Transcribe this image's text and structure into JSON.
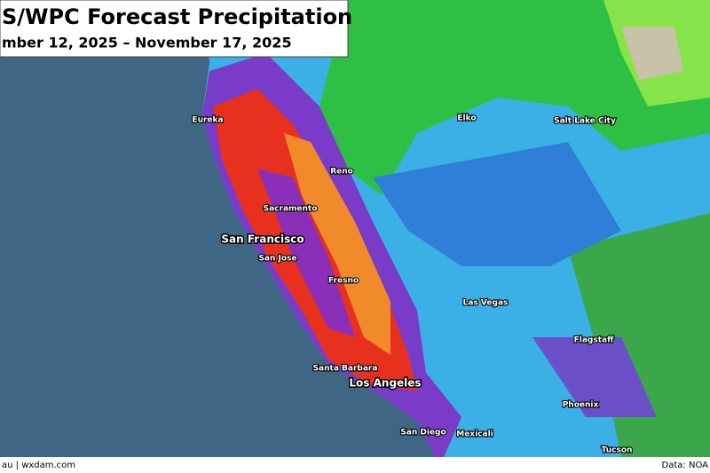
{
  "header": {
    "title": "S/WPC Forecast Precipitation",
    "subtitle": "mber 12, 2025 – November 17, 2025"
  },
  "cities": [
    {
      "label": "Eureka"
    },
    {
      "label": "Reno"
    },
    {
      "label": "Sacramento"
    },
    {
      "label": "San Francisco"
    },
    {
      "label": "San Jose"
    },
    {
      "label": "Fresno"
    },
    {
      "label": "Elko"
    },
    {
      "label": "Salt Lake City"
    },
    {
      "label": "Las Vegas"
    },
    {
      "label": "Flagstaff"
    },
    {
      "label": "Santa Barbara"
    },
    {
      "label": "Los Angeles"
    },
    {
      "label": "Phoenix"
    },
    {
      "label": "San Diego"
    },
    {
      "label": "Mexicali"
    },
    {
      "label": "Tucson"
    }
  ],
  "footer": {
    "left": "au | wxdam.com",
    "right": "Data: NOA"
  }
}
